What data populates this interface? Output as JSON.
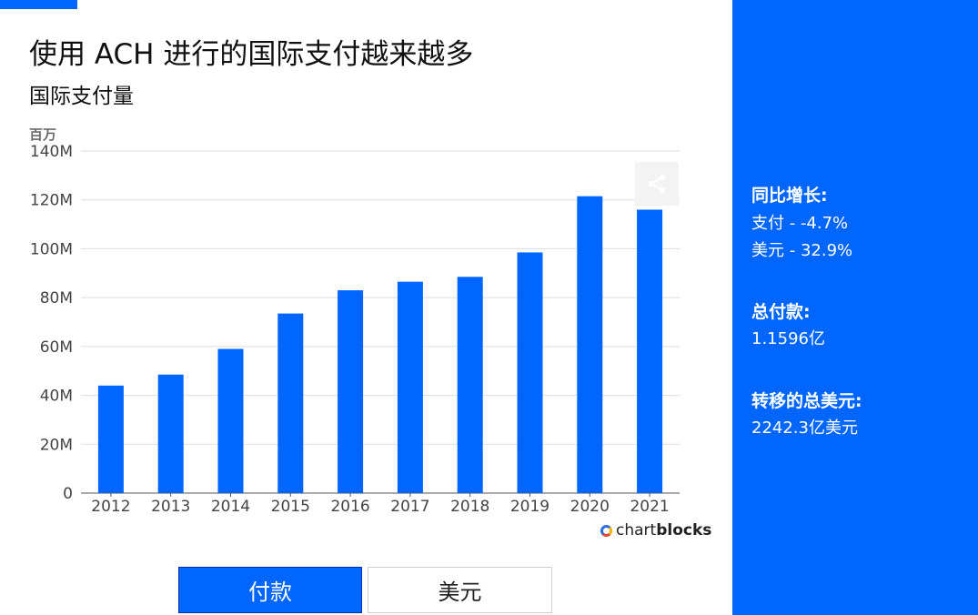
{
  "header": {
    "title": "使用 ACH 进行的国际支付越来越多",
    "subtitle": "国际支付量"
  },
  "chart_data": {
    "type": "bar",
    "unit_label": "百万",
    "categories": [
      "2012",
      "2013",
      "2014",
      "2015",
      "2016",
      "2017",
      "2018",
      "2019",
      "2020",
      "2021"
    ],
    "values": [
      44,
      48.5,
      59,
      73.5,
      83,
      86.5,
      88.5,
      98.5,
      121.5,
      116
    ],
    "ylim": [
      0,
      140
    ],
    "yticks": [
      0,
      20,
      40,
      60,
      80,
      100,
      120,
      140
    ],
    "ytick_labels": [
      "0",
      "20M",
      "40M",
      "60M",
      "80M",
      "100M",
      "120M",
      "140M"
    ],
    "grid": true,
    "bar_color": "#0066ff"
  },
  "branding": {
    "name_light": "chart",
    "name_bold": "blocks"
  },
  "toggles": [
    {
      "label": "付款",
      "active": true
    },
    {
      "label": "美元",
      "active": false
    }
  ],
  "side_panel": {
    "growth": {
      "heading": "同比增长:",
      "lines": [
        "支付 - -4.7%",
        "美元 - 32.9%"
      ]
    },
    "total_payments": {
      "heading": "总付款:",
      "value": "1.1596亿"
    },
    "total_dollars": {
      "heading": "转移的总美元:",
      "value": "2242.3亿美元"
    }
  },
  "colors": {
    "accent": "#0066ff",
    "grid": "#dedede"
  },
  "icons": {
    "share": "share-icon"
  }
}
